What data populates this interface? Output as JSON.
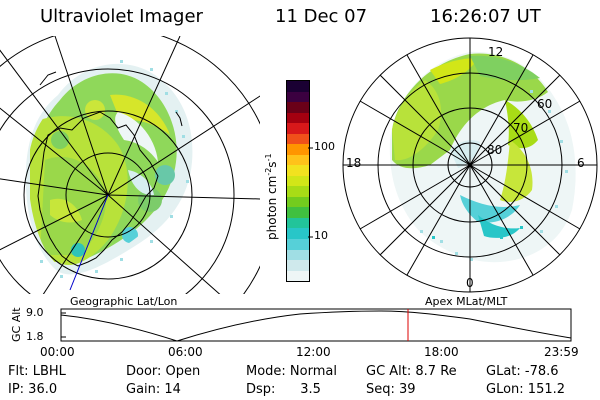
{
  "header": {
    "instrument": "Ultraviolet Imager",
    "date": "11 Dec 07",
    "time": "16:26:07 UT"
  },
  "left_map": {
    "caption": "Geographic Lat/Lon"
  },
  "right_map": {
    "caption": "Apex MLat/MLT",
    "mlt_labels": {
      "top": "12",
      "left": "18",
      "right": "6",
      "bottom": "0"
    },
    "lat_labels": [
      "60",
      "70",
      "80"
    ]
  },
  "colorbar": {
    "label": "photon cm",
    "label_sup1": "-2",
    "label_mid": "s",
    "label_sup2": "-1",
    "ticks": [
      "100",
      "10"
    ],
    "colors": [
      "#1a0033",
      "#3b0040",
      "#6a0018",
      "#a40010",
      "#d8181a",
      "#f0501a",
      "#ff9500",
      "#ffc21a",
      "#f2e21f",
      "#d2e618",
      "#a8dc16",
      "#73cc1e",
      "#40c040",
      "#22c49a",
      "#28c6c8",
      "#56d0d8",
      "#a0dee4",
      "#cfe9ec",
      "#eef6f6"
    ]
  },
  "timeline": {
    "ylabel": "GC Alt",
    "y_ticks": [
      "9.0",
      "1.8"
    ],
    "x_ticks": [
      "00:00",
      "06:00",
      "12:00",
      "18:00",
      "23:59"
    ],
    "marker_color": "#dd0000",
    "current_time": "16:26"
  },
  "status": [
    [
      "Flt: LBHL",
      "Door: Open",
      "Mode: Normal",
      "GC Alt: 8.7 Re",
      "GLat: -78.6"
    ],
    [
      "IP: 36.0",
      "Gain: 14",
      "Dsp:      3.5",
      "Seq: 39",
      "GLon: 151.2"
    ]
  ]
}
